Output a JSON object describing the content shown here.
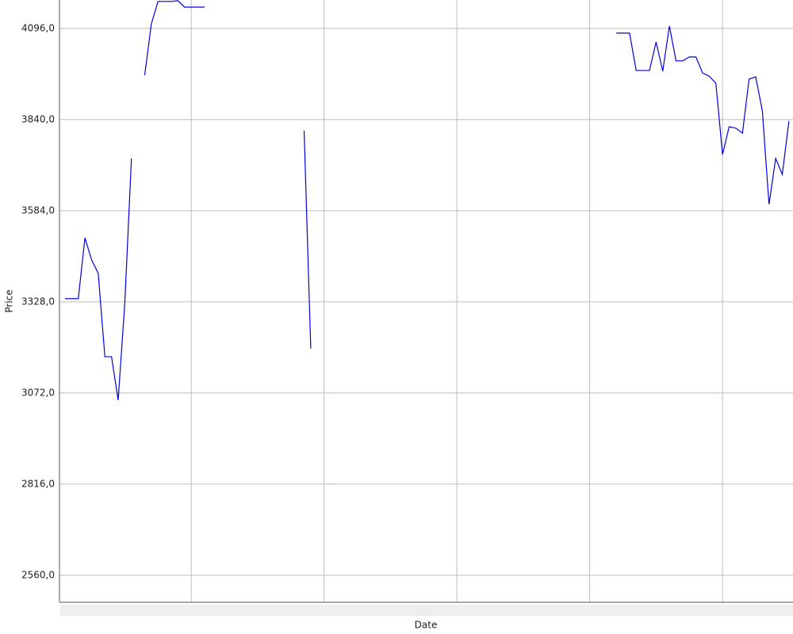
{
  "chart_data": {
    "type": "line",
    "y_label": "Price",
    "x_label": "Date",
    "categories": [
      null,
      null,
      null,
      null,
      null,
      null,
      null,
      null,
      null,
      null,
      null,
      null,
      null,
      null,
      null,
      null,
      null,
      null,
      null,
      null,
      null,
      null,
      null,
      null,
      null,
      null,
      null,
      null,
      null,
      null,
      null,
      null,
      null,
      null,
      null,
      null,
      null,
      null,
      null,
      null,
      null,
      null,
      null,
      null,
      null,
      null,
      null,
      null,
      null,
      null,
      null,
      null,
      null,
      null,
      null,
      null,
      null,
      null,
      null,
      null,
      null,
      null,
      null,
      null,
      null,
      null,
      null,
      null,
      null,
      null,
      null,
      null,
      null,
      null,
      null,
      null,
      null,
      null,
      null,
      null,
      null,
      null,
      null,
      null,
      null,
      null,
      null,
      null,
      null,
      null,
      null,
      null,
      null,
      null,
      null,
      null,
      null,
      null,
      null,
      null,
      null,
      null,
      null,
      null,
      null,
      null,
      null,
      null,
      null,
      null
    ],
    "series": [
      {
        "color": "#0000dd",
        "values": [
          3337,
          3337,
          3337,
          3508,
          3446,
          3408,
          3174,
          3174,
          3052,
          3324,
          3731,
          null,
          3965,
          4109,
          4172,
          4172,
          4172,
          4174,
          4156,
          4156,
          4156,
          4156,
          null,
          null,
          null,
          null,
          null,
          null,
          null,
          null,
          null,
          null,
          null,
          null,
          null,
          null,
          3809,
          3197,
          null,
          null,
          null,
          null,
          null,
          null,
          null,
          null,
          null,
          null,
          null,
          null,
          null,
          null,
          null,
          null,
          null,
          null,
          null,
          null,
          null,
          null,
          null,
          null,
          null,
          null,
          null,
          null,
          null,
          null,
          null,
          null,
          null,
          null,
          null,
          null,
          null,
          null,
          null,
          null,
          null,
          null,
          null,
          null,
          null,
          4083,
          4083,
          4083,
          3978,
          3978,
          3978,
          4058,
          3976,
          4103,
          4005,
          4005,
          4016,
          4016,
          3971,
          3962,
          3942,
          3742,
          3820,
          3816,
          3802,
          3954,
          3960,
          3864,
          3602,
          3731,
          3686,
          3836
        ]
      }
    ],
    "ylim": [
      2484,
      4176
    ],
    "yticks": [
      {
        "value": 2560,
        "label": "2560,0"
      },
      {
        "value": 2816,
        "label": "2816,0"
      },
      {
        "value": 3072,
        "label": "3072,0"
      },
      {
        "value": 3328,
        "label": "3328,0"
      },
      {
        "value": 3584,
        "label": "3584,0"
      },
      {
        "value": 3840,
        "label": "3840,0"
      },
      {
        "value": 4096,
        "label": "4096,0"
      }
    ],
    "grid": true
  }
}
